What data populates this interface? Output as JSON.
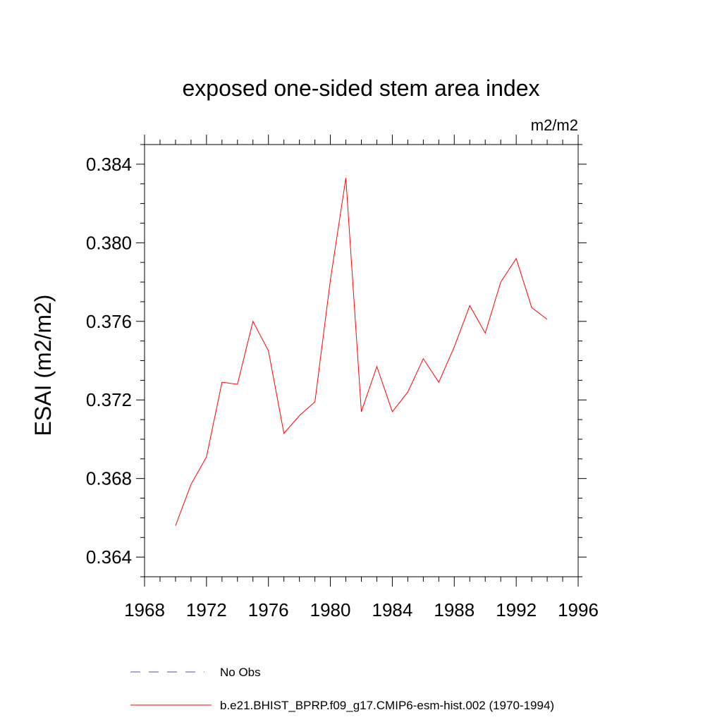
{
  "chart_data": {
    "type": "line",
    "title": "exposed one-sided stem area index",
    "units": "m2/m2",
    "ylabel": "ESAI  (m2/m2)",
    "xlabel": "",
    "xlim": [
      1968,
      1996
    ],
    "ylim": [
      0.363,
      0.385
    ],
    "x_ticks": [
      1968,
      1972,
      1976,
      1980,
      1984,
      1988,
      1992,
      1996
    ],
    "x_tick_labels": [
      "1968",
      "1972",
      "1976",
      "1980",
      "1984",
      "1988",
      "1992",
      "1996"
    ],
    "y_ticks": [
      0.364,
      0.368,
      0.372,
      0.376,
      0.38,
      0.384
    ],
    "y_tick_labels": [
      "0.364",
      "0.368",
      "0.372",
      "0.376",
      "0.380",
      "0.384"
    ],
    "grid": false,
    "legend_position": "bottom",
    "series": [
      {
        "name": "b.e21.BHIST_BPRP.f09_g17.CMIP6-esm-hist.002 (1970-1994)",
        "color": "#ff0000",
        "style": "solid",
        "x": [
          1970,
          1971,
          1972,
          1973,
          1974,
          1975,
          1976,
          1977,
          1978,
          1979,
          1980,
          1981,
          1982,
          1983,
          1984,
          1985,
          1986,
          1987,
          1988,
          1989,
          1990,
          1991,
          1992,
          1993,
          1994
        ],
        "y": [
          0.3656,
          0.3677,
          0.3691,
          0.3729,
          0.3728,
          0.376,
          0.3745,
          0.3703,
          0.3712,
          0.3719,
          0.3781,
          0.3833,
          0.3714,
          0.3737,
          0.3714,
          0.3724,
          0.3741,
          0.3729,
          0.3747,
          0.3768,
          0.3754,
          0.378,
          0.3792,
          0.3767,
          0.3761
        ]
      },
      {
        "name": "No Obs",
        "color": "#5b4bb5",
        "style": "dashed",
        "x": [],
        "y": []
      }
    ]
  }
}
